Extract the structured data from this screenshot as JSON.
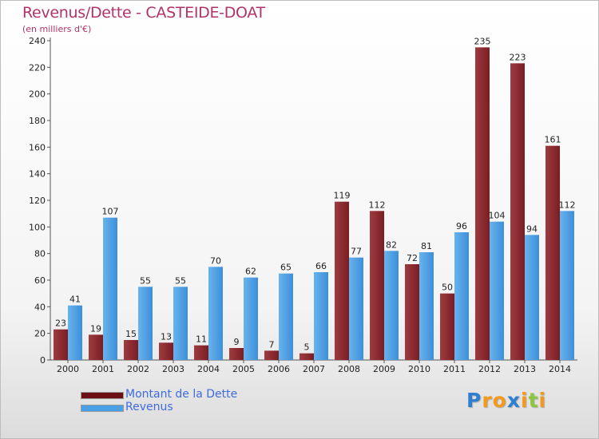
{
  "header": {
    "title": "Revenus/Dette - CASTEIDE-DOAT",
    "subtitle": "(en milliers d'€)"
  },
  "colors": {
    "debt": "#7a1d22",
    "debt_light": "#9e3c40",
    "revenue": "#3d8fd9",
    "revenue_light": "#67b3ee"
  },
  "legend": {
    "items": [
      {
        "label": "Montant de la Dette",
        "color": "#6b0f14"
      },
      {
        "label": "Revenus",
        "color": "#4aa0e6"
      }
    ]
  },
  "logo": {
    "text": "Proxiti",
    "letters": [
      {
        "ch": "P",
        "color": "#2e7fd1"
      },
      {
        "ch": "r",
        "color": "#f39a1b"
      },
      {
        "ch": "o",
        "color": "#f39a1b"
      },
      {
        "ch": "x",
        "color": "#2e7fd1"
      },
      {
        "ch": "i",
        "color": "#f39a1b"
      },
      {
        "ch": "t",
        "color": "#8cc63f"
      },
      {
        "ch": "i",
        "color": "#f39a1b"
      }
    ]
  },
  "chart_data": {
    "type": "bar",
    "title": "Revenus/Dette - CASTEIDE-DOAT",
    "subtitle": "(en milliers d'€)",
    "categories": [
      "2000",
      "2001",
      "2002",
      "2003",
      "2004",
      "2005",
      "2006",
      "2007",
      "2008",
      "2009",
      "2010",
      "2011",
      "2012",
      "2013",
      "2014"
    ],
    "series": [
      {
        "name": "Montant de la Dette",
        "values": [
          23,
          19,
          15,
          13,
          11,
          9,
          7,
          5,
          119,
          112,
          72,
          50,
          235,
          223,
          161
        ]
      },
      {
        "name": "Revenus",
        "values": [
          41,
          107,
          55,
          55,
          70,
          62,
          65,
          66,
          77,
          82,
          81,
          96,
          104,
          94,
          112
        ]
      }
    ],
    "ylim": [
      0,
      240
    ],
    "yticks": [
      0,
      20,
      40,
      60,
      80,
      100,
      120,
      140,
      160,
      180,
      200,
      220,
      240
    ],
    "grid": false,
    "legend_position": "bottom-left"
  }
}
